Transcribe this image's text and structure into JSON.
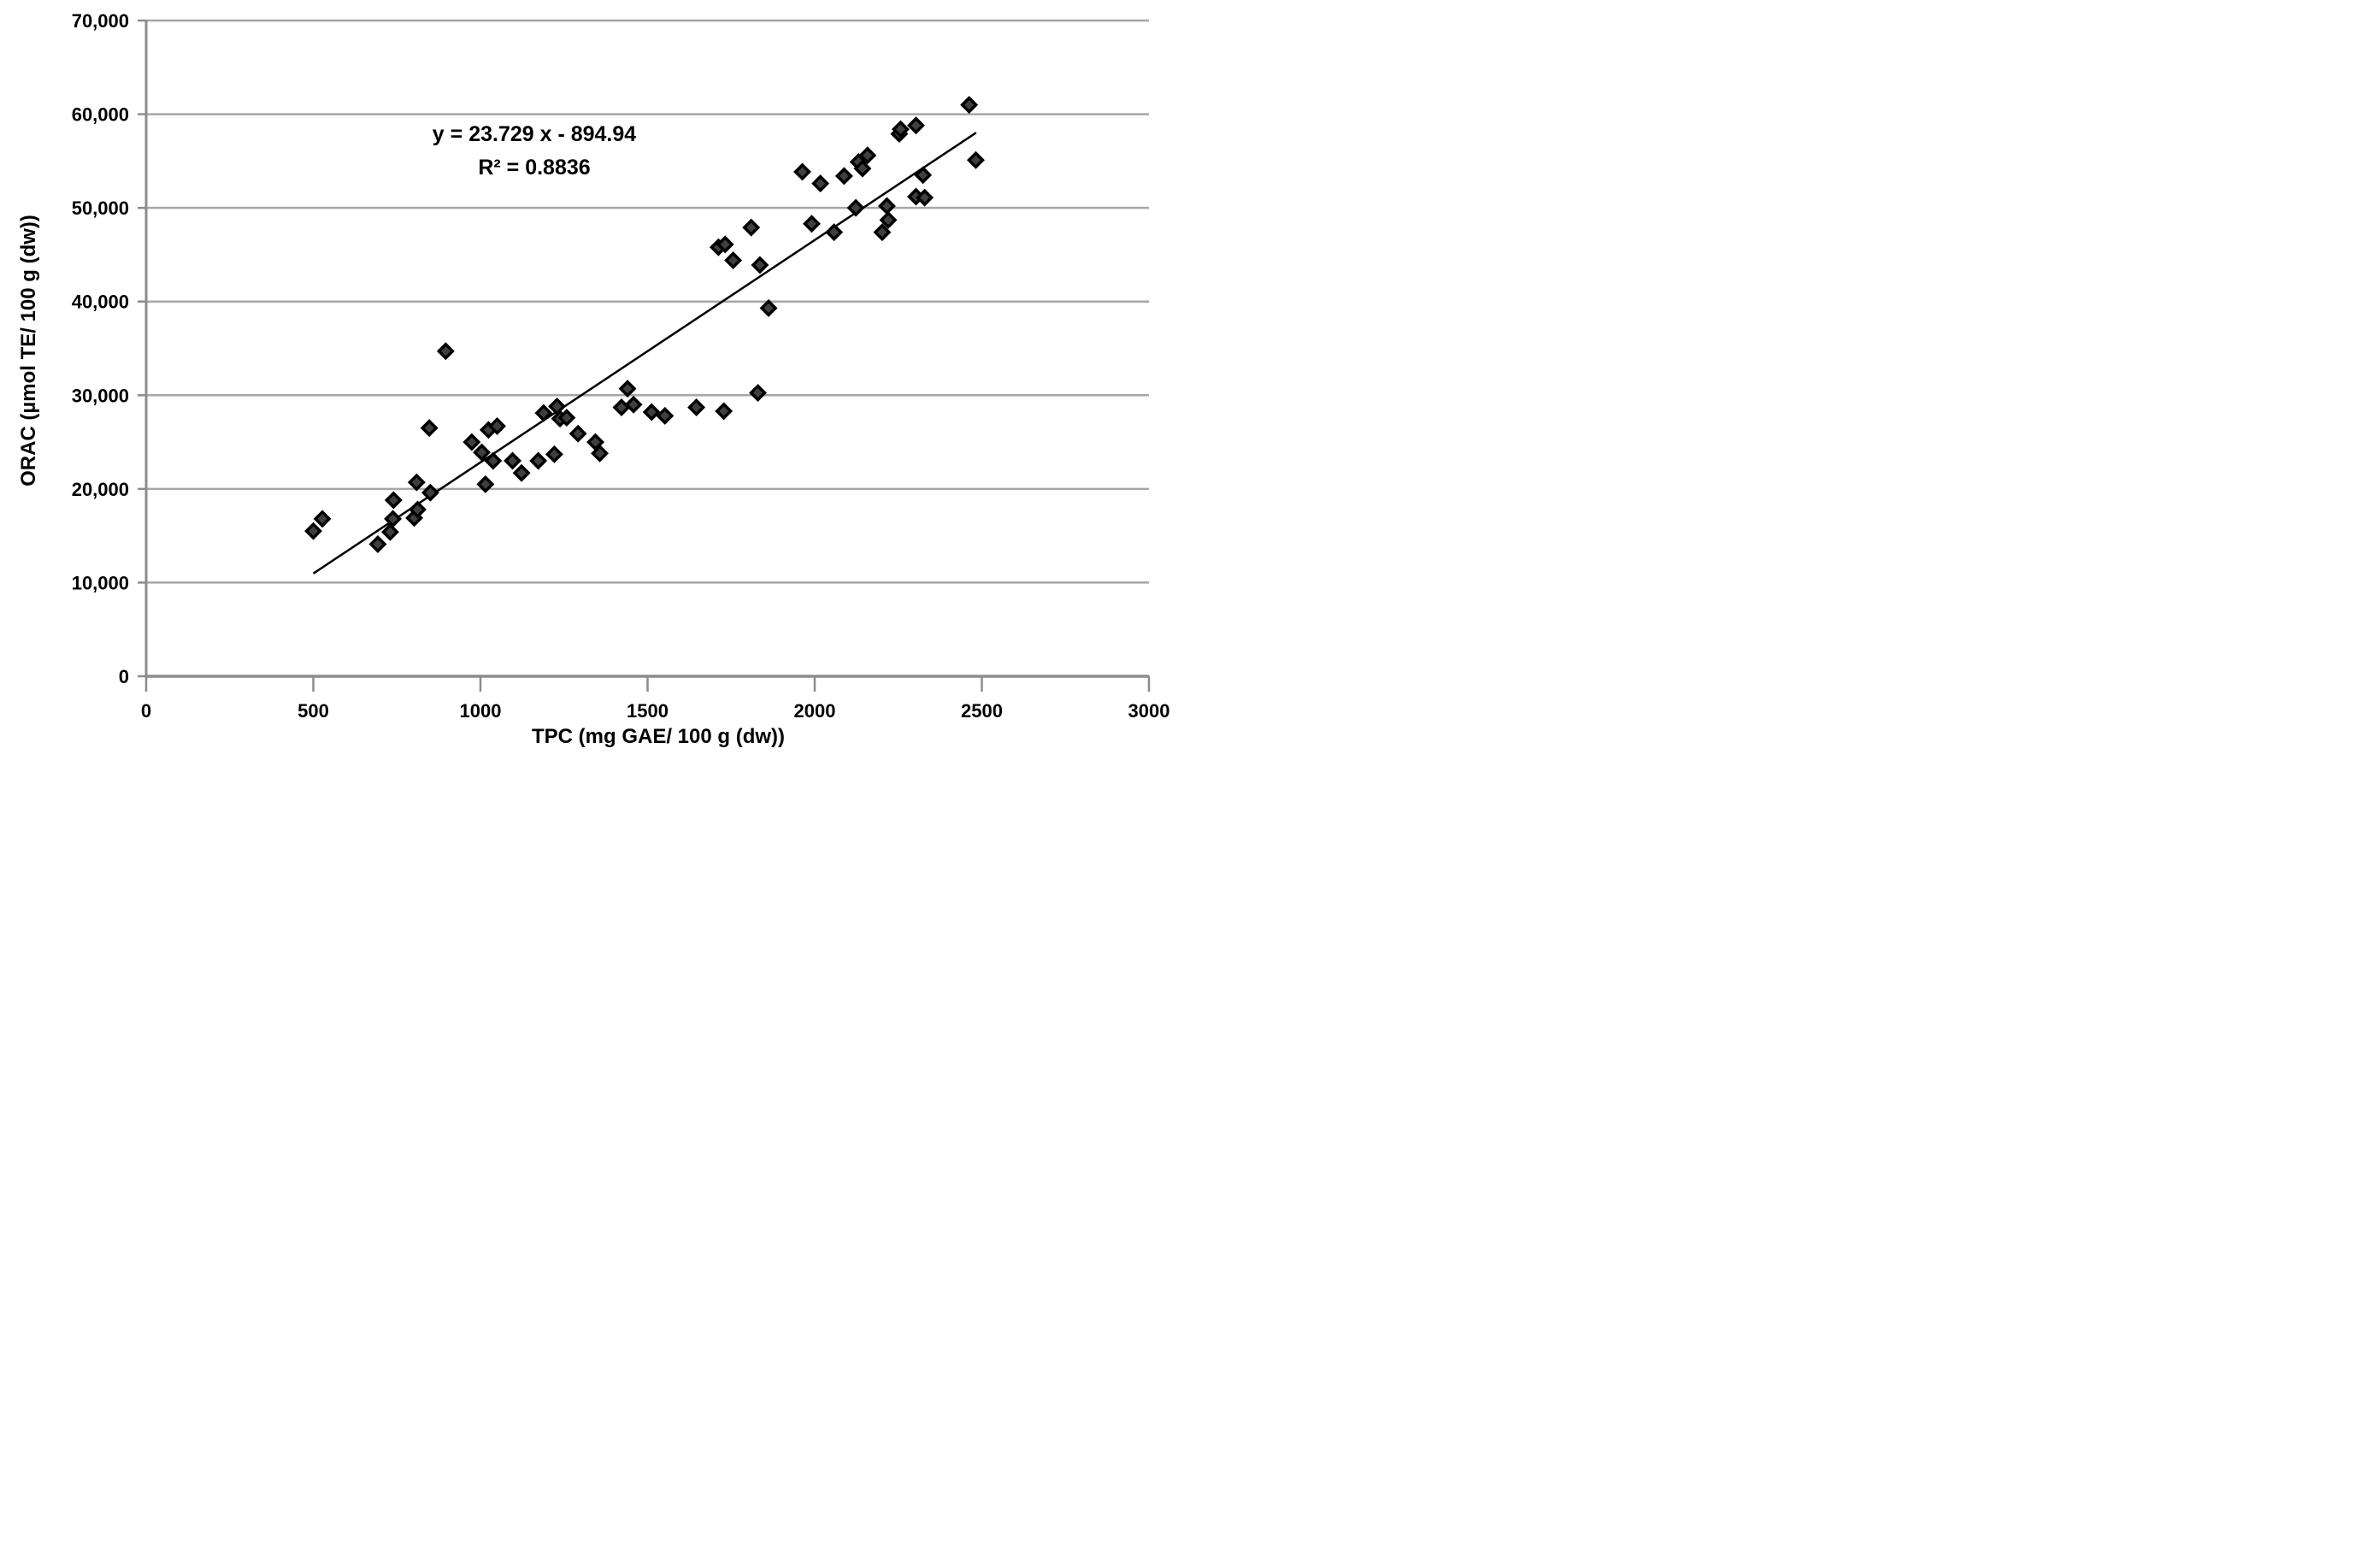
{
  "chart_data": {
    "type": "scatter",
    "title": "",
    "xlabel": "TPC (mg GAE/ 100 g (dw))",
    "ylabel": "ORAC (µmol TE/ 100 g (dw))",
    "annotation_line1": "y = 23.729 x - 894.94",
    "annotation_line2": "R² = 0.8836",
    "xlim": [
      0,
      3000
    ],
    "ylim": [
      0,
      70000
    ],
    "x_ticks": [
      0,
      500,
      1000,
      1500,
      2000,
      2500,
      3000
    ],
    "x_tick_labels": [
      "0",
      "500",
      "1000",
      "1500",
      "2000",
      "2500",
      "3000"
    ],
    "y_ticks": [
      0,
      10000,
      20000,
      30000,
      40000,
      50000,
      60000,
      70000
    ],
    "y_tick_labels": [
      "0",
      "10,000",
      "20,000",
      "30,000",
      "40,000",
      "50,000",
      "60,000",
      "70,000"
    ],
    "grid": "horizontal",
    "legend": "none",
    "trendline": {
      "slope": 23.729,
      "intercept": -894.94,
      "x_start": 500,
      "x_end": 2483
    },
    "points": [
      [
        500,
        15500
      ],
      [
        527,
        16800
      ],
      [
        693,
        14100
      ],
      [
        730,
        15400
      ],
      [
        738,
        16800
      ],
      [
        740,
        18800
      ],
      [
        802,
        16900
      ],
      [
        812,
        17800
      ],
      [
        809,
        20700
      ],
      [
        850,
        19600
      ],
      [
        847,
        26500
      ],
      [
        896,
        34700
      ],
      [
        974,
        25000
      ],
      [
        1004,
        23900
      ],
      [
        1015,
        20500
      ],
      [
        1024,
        26300
      ],
      [
        1038,
        23000
      ],
      [
        1050,
        26700
      ],
      [
        1096,
        23000
      ],
      [
        1123,
        21700
      ],
      [
        1173,
        23000
      ],
      [
        1189,
        28100
      ],
      [
        1221,
        23700
      ],
      [
        1229,
        28800
      ],
      [
        1238,
        27500
      ],
      [
        1258,
        27600
      ],
      [
        1292,
        25900
      ],
      [
        1344,
        25000
      ],
      [
        1357,
        23800
      ],
      [
        1422,
        28700
      ],
      [
        1440,
        30700
      ],
      [
        1458,
        29000
      ],
      [
        1512,
        28200
      ],
      [
        1552,
        27800
      ],
      [
        1646,
        28700
      ],
      [
        1728,
        28300
      ],
      [
        1830,
        30250
      ],
      [
        1712,
        45800
      ],
      [
        1732,
        46100
      ],
      [
        1756,
        44400
      ],
      [
        1810,
        47900
      ],
      [
        1836,
        43900
      ],
      [
        1862,
        39300
      ],
      [
        1963,
        53850
      ],
      [
        1991,
        48300
      ],
      [
        2017,
        52600
      ],
      [
        2058,
        47400
      ],
      [
        2088,
        53400
      ],
      [
        2123,
        50000
      ],
      [
        2131,
        54900
      ],
      [
        2143,
        54200
      ],
      [
        2158,
        55600
      ],
      [
        2202,
        47400
      ],
      [
        2216,
        50200
      ],
      [
        2220,
        48700
      ],
      [
        2253,
        57900
      ],
      [
        2257,
        58400
      ],
      [
        2303,
        58800
      ],
      [
        2303,
        51200
      ],
      [
        2324,
        53500
      ],
      [
        2329,
        51100
      ],
      [
        2462,
        61000
      ],
      [
        2482,
        55100
      ]
    ],
    "colors": {
      "marker_fill": "#3f3f3f",
      "marker_stroke": "#000000",
      "trendline": "#000000",
      "gridline": "#a6a6a6",
      "axis": "#8c8c8c",
      "text": "#000000"
    }
  }
}
